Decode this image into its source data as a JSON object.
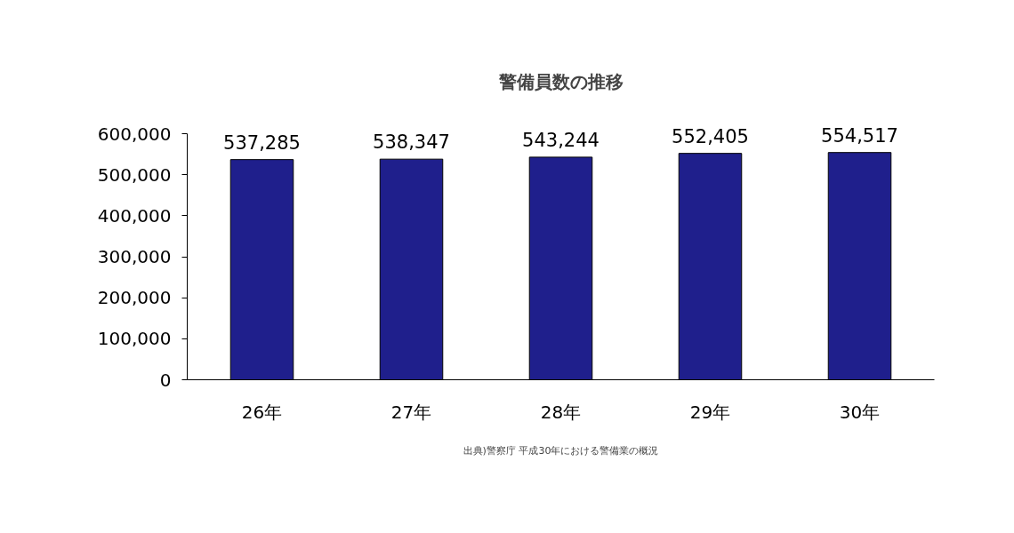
{
  "chart_data": {
    "type": "bar",
    "title": "警備員数の推移",
    "categories": [
      "26年",
      "27年",
      "28年",
      "29年",
      "30年"
    ],
    "values": [
      537285,
      538347,
      543244,
      552405,
      554517
    ],
    "color": "#1f1f8c",
    "ylim": [
      0,
      600000
    ],
    "yticks": [
      {
        "value": 0,
        "label": "0"
      },
      {
        "value": 100000,
        "label": "100,000"
      },
      {
        "value": 200000,
        "label": "200,000"
      },
      {
        "value": 300000,
        "label": "300,000"
      },
      {
        "value": 400000,
        "label": "400,000"
      },
      {
        "value": 500000,
        "label": "500,000"
      },
      {
        "value": 600000,
        "label": "600,000"
      }
    ],
    "value_labels": [
      "537,285",
      "538,347",
      "543,244",
      "552,405",
      "554,517"
    ],
    "grid": false,
    "annotations": [
      "出典)警察庁 平成30年における警備業の概況"
    ]
  }
}
